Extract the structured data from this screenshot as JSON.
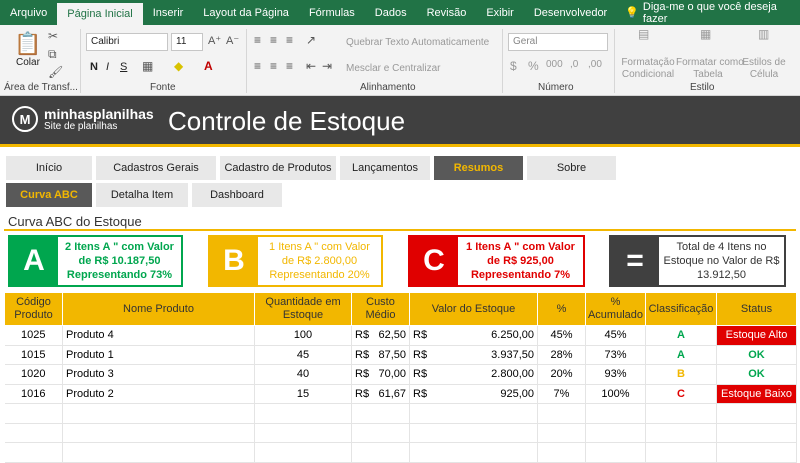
{
  "ribbon_tabs": [
    "Arquivo",
    "Página Inicial",
    "Inserir",
    "Layout da Página",
    "Fórmulas",
    "Dados",
    "Revisão",
    "Exibir",
    "Desenvolvedor"
  ],
  "active_tab": "Página Inicial",
  "tell_me": "Diga-me o que você deseja fazer",
  "ribbon": {
    "paste_label": "Colar",
    "clipboard_label": "Área de Transf...",
    "font_name": "Calibri",
    "font_size": "11",
    "font_group": "Fonte",
    "wrap_text": "Quebrar Texto Automaticamente",
    "merge_center": "Mesclar e Centralizar",
    "alignment_group": "Alinhamento",
    "number_format": "Geral",
    "number_group": "Número",
    "cond_format": [
      "Formatação",
      "Condicional"
    ],
    "format_table": [
      "Formatar como",
      "Tabela"
    ],
    "cell_styles": [
      "Estilos de",
      "Célula"
    ],
    "styles_group": "Estilo",
    "bold": "N",
    "italic": "I",
    "underline": "S"
  },
  "banner": {
    "logo_name": "minhasplanilhas",
    "logo_sub": "Site de planilhas",
    "title": "Controle de Estoque"
  },
  "nav_row1": [
    "Início",
    "Cadastros Gerais",
    "Cadastro de Produtos",
    "Lançamentos",
    "Resumos",
    "Sobre"
  ],
  "nav_row2": [
    "Curva ABC",
    "Detalha Item",
    "Dashboard"
  ],
  "section_title": "Curva ABC do Estoque",
  "cards": {
    "a": {
      "letter": "A",
      "line1": "2 Itens A \" com Valor",
      "line2": "de R$ 10.187,50",
      "line3": "Representando 73%"
    },
    "b": {
      "letter": "B",
      "line1": "1 Itens A \" com Valor",
      "line2": "de R$ 2.800,00",
      "line3": "Representando 20%"
    },
    "c": {
      "letter": "C",
      "line1": "1 Itens A \" com Valor",
      "line2": "de R$ 925,00",
      "line3": "Representando 7%"
    },
    "total": {
      "letter": "=",
      "line1": "Total de 4 Itens no",
      "line2": "Estoque no Valor de R$",
      "line3": "13.912,50"
    }
  },
  "colors": {
    "a": "#00a64e",
    "b": "#f2b700",
    "c": "#e00000",
    "total": "#404040"
  },
  "table": {
    "headers": [
      "Código Produto",
      "Nome Produto",
      "Quantidade em Estoque",
      "Custo Médio",
      "Valor do Estoque",
      "%",
      "% Acumulado",
      "Classificação",
      "Status"
    ],
    "rows": [
      {
        "code": "1025",
        "name": "Produto 4",
        "qty": "100",
        "cur": "R$",
        "cost": "62,50",
        "vcur": "R$",
        "value": "6.250,00",
        "pct": "45%",
        "acc": "45%",
        "cls": "A",
        "status": "Estoque Alto"
      },
      {
        "code": "1015",
        "name": "Produto 1",
        "qty": "45",
        "cur": "R$",
        "cost": "87,50",
        "vcur": "R$",
        "value": "3.937,50",
        "pct": "28%",
        "acc": "73%",
        "cls": "A",
        "status": "OK"
      },
      {
        "code": "1020",
        "name": "Produto 3",
        "qty": "40",
        "cur": "R$",
        "cost": "70,00",
        "vcur": "R$",
        "value": "2.800,00",
        "pct": "20%",
        "acc": "93%",
        "cls": "B",
        "status": "OK"
      },
      {
        "code": "1016",
        "name": "Produto 2",
        "qty": "15",
        "cur": "R$",
        "cost": "61,67",
        "vcur": "R$",
        "value": "925,00",
        "pct": "7%",
        "acc": "100%",
        "cls": "C",
        "status": "Estoque Baixo"
      }
    ]
  }
}
